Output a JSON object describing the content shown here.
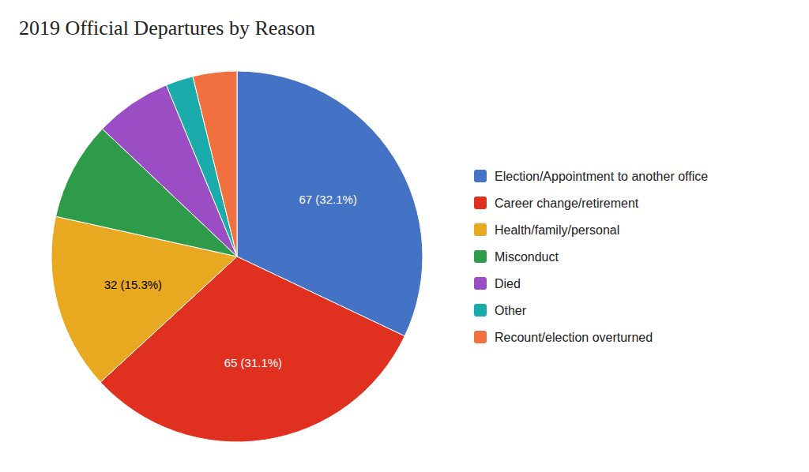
{
  "chart_data": {
    "type": "pie",
    "title": "2019 Official Departures by Reason",
    "categories": [
      "Election/Appointment to another office",
      "Career change/retirement",
      "Health/family/personal",
      "Misconduct",
      "Died",
      "Other",
      "Recount/election overturned"
    ],
    "values": [
      67,
      65,
      32,
      18,
      14,
      5,
      8
    ],
    "colors": [
      "#4472C4",
      "#E03020",
      "#E8A820",
      "#2E9B4A",
      "#9B4DC4",
      "#1AABAB",
      "#F07040"
    ],
    "data_labels": true,
    "value_labels": [
      "67 (32.1%)",
      "65 (31.1%)",
      "32 (15.3%)",
      null,
      null,
      null,
      null
    ],
    "legend": "right"
  }
}
